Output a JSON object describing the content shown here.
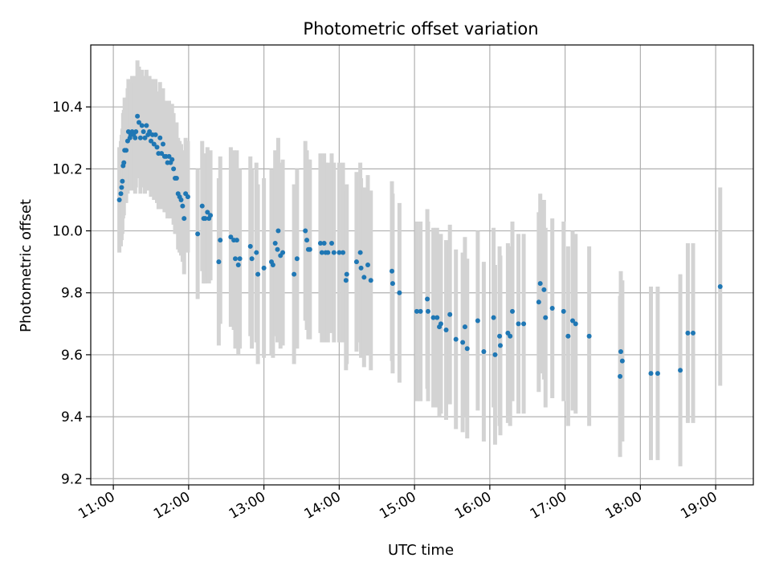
{
  "chart_data": {
    "type": "scatter",
    "title": "Photometric offset variation",
    "xlabel": "UTC time",
    "ylabel": "Photometric offset",
    "x_tick_labels": [
      "11:00",
      "12:00",
      "13:00",
      "14:00",
      "15:00",
      "16:00",
      "17:00",
      "18:00",
      "19:00"
    ],
    "y_tick_labels": [
      "9.2",
      "9.4",
      "9.6",
      "9.8",
      "10.0",
      "10.2",
      "10.4"
    ],
    "x_ticks_hours": [
      11,
      12,
      13,
      14,
      15,
      16,
      17,
      18,
      19
    ],
    "y_ticks": [
      9.2,
      9.4,
      9.6,
      9.8,
      10.0,
      10.2,
      10.4
    ],
    "xlim_hours": [
      10.7,
      19.5
    ],
    "ylim": [
      9.18,
      10.6
    ],
    "grid": true,
    "colors": {
      "points": "#1f77b4",
      "error_bars": "#d3d3d3",
      "grid": "#b0b0b0",
      "axes": "#000000"
    },
    "series": [
      {
        "points": [
          [
            11.08,
            10.1,
            0.17
          ],
          [
            11.1,
            10.12,
            0.17
          ],
          [
            11.11,
            10.14,
            0.17
          ],
          [
            11.12,
            10.16,
            0.17
          ],
          [
            11.13,
            10.21,
            0.17
          ],
          [
            11.14,
            10.22,
            0.17
          ],
          [
            11.15,
            10.26,
            0.17
          ],
          [
            11.17,
            10.26,
            0.17
          ],
          [
            11.19,
            10.29,
            0.17
          ],
          [
            11.2,
            10.32,
            0.17
          ],
          [
            11.22,
            10.3,
            0.17
          ],
          [
            11.23,
            10.31,
            0.17
          ],
          [
            11.25,
            10.32,
            0.18
          ],
          [
            11.27,
            10.31,
            0.18
          ],
          [
            11.29,
            10.3,
            0.18
          ],
          [
            11.3,
            10.32,
            0.18
          ],
          [
            11.32,
            10.37,
            0.18
          ],
          [
            11.34,
            10.35,
            0.18
          ],
          [
            11.36,
            10.3,
            0.18
          ],
          [
            11.38,
            10.34,
            0.18
          ],
          [
            11.4,
            10.32,
            0.18
          ],
          [
            11.42,
            10.3,
            0.18
          ],
          [
            11.44,
            10.34,
            0.18
          ],
          [
            11.46,
            10.31,
            0.18
          ],
          [
            11.48,
            10.32,
            0.18
          ],
          [
            11.5,
            10.29,
            0.18
          ],
          [
            11.52,
            10.31,
            0.18
          ],
          [
            11.54,
            10.28,
            0.18
          ],
          [
            11.56,
            10.31,
            0.18
          ],
          [
            11.58,
            10.27,
            0.18
          ],
          [
            11.6,
            10.25,
            0.18
          ],
          [
            11.62,
            10.3,
            0.18
          ],
          [
            11.64,
            10.25,
            0.18
          ],
          [
            11.66,
            10.28,
            0.18
          ],
          [
            11.68,
            10.24,
            0.18
          ],
          [
            11.7,
            10.24,
            0.18
          ],
          [
            11.72,
            10.22,
            0.18
          ],
          [
            11.74,
            10.24,
            0.18
          ],
          [
            11.76,
            10.22,
            0.18
          ],
          [
            11.78,
            10.23,
            0.18
          ],
          [
            11.8,
            10.2,
            0.18
          ],
          [
            11.82,
            10.17,
            0.18
          ],
          [
            11.84,
            10.17,
            0.18
          ],
          [
            11.86,
            10.12,
            0.18
          ],
          [
            11.88,
            10.11,
            0.18
          ],
          [
            11.9,
            10.1,
            0.18
          ],
          [
            11.92,
            10.08,
            0.18
          ],
          [
            11.94,
            10.04,
            0.18
          ],
          [
            11.96,
            10.12,
            0.18
          ],
          [
            11.99,
            10.11,
            0.18
          ],
          [
            12.12,
            9.99,
            0.21
          ],
          [
            12.18,
            10.08,
            0.21
          ],
          [
            12.2,
            10.04,
            0.21
          ],
          [
            12.22,
            10.04,
            0.21
          ],
          [
            12.25,
            10.06,
            0.21
          ],
          [
            12.27,
            10.04,
            0.21
          ],
          [
            12.29,
            10.05,
            0.21
          ],
          [
            12.4,
            9.9,
            0.27
          ],
          [
            12.42,
            9.97,
            0.27
          ],
          [
            12.56,
            9.98,
            0.29
          ],
          [
            12.6,
            9.97,
            0.29
          ],
          [
            12.62,
            9.91,
            0.29
          ],
          [
            12.64,
            9.97,
            0.29
          ],
          [
            12.66,
            9.89,
            0.29
          ],
          [
            12.68,
            9.91,
            0.29
          ],
          [
            12.82,
            9.95,
            0.29
          ],
          [
            12.84,
            9.91,
            0.29
          ],
          [
            12.9,
            9.93,
            0.29
          ],
          [
            12.92,
            9.86,
            0.29
          ],
          [
            13.0,
            9.88,
            0.29
          ],
          [
            13.1,
            9.9,
            0.3
          ],
          [
            13.12,
            9.89,
            0.3
          ],
          [
            13.15,
            9.96,
            0.3
          ],
          [
            13.18,
            9.94,
            0.3
          ],
          [
            13.19,
            10.0,
            0.3
          ],
          [
            13.22,
            9.92,
            0.3
          ],
          [
            13.25,
            9.93,
            0.3
          ],
          [
            13.4,
            9.86,
            0.29
          ],
          [
            13.44,
            9.91,
            0.29
          ],
          [
            13.55,
            10.0,
            0.29
          ],
          [
            13.57,
            9.97,
            0.29
          ],
          [
            13.59,
            9.94,
            0.29
          ],
          [
            13.61,
            9.94,
            0.29
          ],
          [
            13.75,
            9.96,
            0.29
          ],
          [
            13.77,
            9.93,
            0.29
          ],
          [
            13.8,
            9.96,
            0.29
          ],
          [
            13.82,
            9.93,
            0.29
          ],
          [
            13.85,
            9.93,
            0.29
          ],
          [
            13.9,
            9.96,
            0.29
          ],
          [
            13.93,
            9.93,
            0.29
          ],
          [
            14.0,
            9.93,
            0.29
          ],
          [
            14.05,
            9.93,
            0.29
          ],
          [
            14.09,
            9.84,
            0.29
          ],
          [
            14.1,
            9.86,
            0.29
          ],
          [
            14.23,
            9.9,
            0.29
          ],
          [
            14.28,
            9.93,
            0.29
          ],
          [
            14.29,
            9.88,
            0.29
          ],
          [
            14.33,
            9.85,
            0.29
          ],
          [
            14.38,
            9.89,
            0.29
          ],
          [
            14.42,
            9.84,
            0.29
          ],
          [
            14.7,
            9.87,
            0.29
          ],
          [
            14.71,
            9.83,
            0.29
          ],
          [
            14.8,
            9.8,
            0.29
          ],
          [
            15.03,
            9.74,
            0.29
          ],
          [
            15.08,
            9.74,
            0.29
          ],
          [
            15.17,
            9.78,
            0.29
          ],
          [
            15.18,
            9.74,
            0.29
          ],
          [
            15.25,
            9.72,
            0.29
          ],
          [
            15.3,
            9.72,
            0.29
          ],
          [
            15.33,
            9.69,
            0.29
          ],
          [
            15.35,
            9.7,
            0.29
          ],
          [
            15.42,
            9.68,
            0.29
          ],
          [
            15.47,
            9.73,
            0.29
          ],
          [
            15.55,
            9.65,
            0.29
          ],
          [
            15.64,
            9.64,
            0.29
          ],
          [
            15.67,
            9.69,
            0.29
          ],
          [
            15.7,
            9.62,
            0.29
          ],
          [
            15.84,
            9.71,
            0.29
          ],
          [
            15.92,
            9.61,
            0.29
          ],
          [
            16.05,
            9.72,
            0.29
          ],
          [
            16.07,
            9.6,
            0.29
          ],
          [
            16.13,
            9.66,
            0.29
          ],
          [
            16.14,
            9.63,
            0.29
          ],
          [
            16.24,
            9.67,
            0.29
          ],
          [
            16.27,
            9.66,
            0.29
          ],
          [
            16.3,
            9.74,
            0.29
          ],
          [
            16.38,
            9.7,
            0.29
          ],
          [
            16.45,
            9.7,
            0.29
          ],
          [
            16.65,
            9.77,
            0.29
          ],
          [
            16.67,
            9.83,
            0.29
          ],
          [
            16.72,
            9.81,
            0.29
          ],
          [
            16.74,
            9.72,
            0.29
          ],
          [
            16.83,
            9.75,
            0.29
          ],
          [
            16.98,
            9.74,
            0.29
          ],
          [
            17.04,
            9.66,
            0.29
          ],
          [
            17.1,
            9.71,
            0.29
          ],
          [
            17.14,
            9.7,
            0.29
          ],
          [
            17.32,
            9.66,
            0.29
          ],
          [
            17.73,
            9.53,
            0.26
          ],
          [
            17.74,
            9.61,
            0.26
          ],
          [
            17.76,
            9.58,
            0.26
          ],
          [
            18.14,
            9.54,
            0.28
          ],
          [
            18.23,
            9.54,
            0.28
          ],
          [
            18.53,
            9.55,
            0.31
          ],
          [
            18.63,
            9.67,
            0.29
          ],
          [
            18.7,
            9.67,
            0.29
          ],
          [
            19.06,
            9.82,
            0.32
          ]
        ]
      }
    ]
  }
}
